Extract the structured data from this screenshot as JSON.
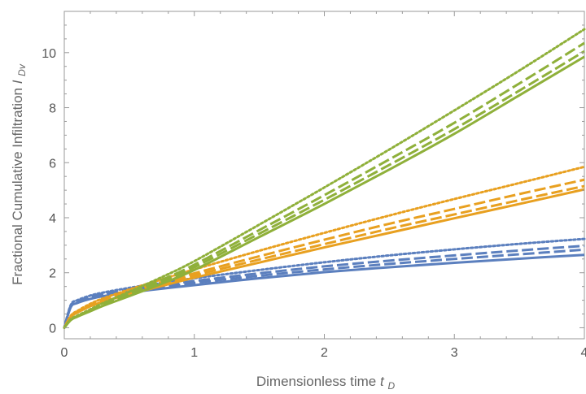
{
  "chart_data": {
    "type": "line",
    "xlabel": "Dimensionless time",
    "xlabel_symbol": "t",
    "xlabel_subscript": "D",
    "ylabel": "Fractional Cumulative Infiltration",
    "ylabel_symbol": "I",
    "ylabel_subscript": "Dv",
    "xlim": [
      0,
      4
    ],
    "ylim": [
      -0.4,
      11.5
    ],
    "x_ticks": [
      0,
      1,
      2,
      3,
      4
    ],
    "y_ticks": [
      0,
      2,
      4,
      6,
      8,
      10
    ],
    "grid": false,
    "legend": "none",
    "x": [
      0,
      0.05,
      0.1,
      0.2,
      0.3,
      0.5,
      0.75,
      1.0,
      1.5,
      2.0,
      2.5,
      3.0,
      3.5,
      4.0
    ],
    "series": [
      {
        "color": "#5B7FBE",
        "style": "solid",
        "values": [
          0,
          0.75,
          0.9,
          1.05,
          1.15,
          1.28,
          1.42,
          1.55,
          1.8,
          2.02,
          2.2,
          2.36,
          2.51,
          2.65
        ]
      },
      {
        "color": "#5B7FBE",
        "style": "dashed",
        "values": [
          0,
          0.77,
          0.93,
          1.09,
          1.19,
          1.33,
          1.48,
          1.63,
          1.89,
          2.12,
          2.32,
          2.5,
          2.67,
          2.84
        ]
      },
      {
        "color": "#5B7FBE",
        "style": "dashed",
        "values": [
          0,
          0.8,
          0.96,
          1.12,
          1.23,
          1.38,
          1.55,
          1.7,
          1.98,
          2.23,
          2.44,
          2.63,
          2.81,
          2.98
        ]
      },
      {
        "color": "#5B7FBE",
        "style": "dotted",
        "values": [
          0,
          0.83,
          1.0,
          1.17,
          1.28,
          1.45,
          1.63,
          1.8,
          2.1,
          2.38,
          2.63,
          2.85,
          3.05,
          3.23
        ]
      },
      {
        "color": "#E8A020",
        "style": "solid",
        "values": [
          0,
          0.4,
          0.55,
          0.78,
          0.95,
          1.22,
          1.52,
          1.82,
          2.37,
          2.92,
          3.45,
          3.98,
          4.5,
          5.03
        ]
      },
      {
        "color": "#E8A020",
        "style": "dashed",
        "values": [
          0,
          0.41,
          0.57,
          0.8,
          0.98,
          1.27,
          1.58,
          1.9,
          2.48,
          3.04,
          3.6,
          4.12,
          4.64,
          5.15
        ]
      },
      {
        "color": "#E8A020",
        "style": "dashed",
        "values": [
          0,
          0.42,
          0.59,
          0.83,
          1.02,
          1.32,
          1.66,
          1.98,
          2.6,
          3.2,
          3.78,
          4.32,
          4.86,
          5.38
        ]
      },
      {
        "color": "#E8A020",
        "style": "dotted",
        "values": [
          0,
          0.44,
          0.61,
          0.87,
          1.07,
          1.39,
          1.76,
          2.12,
          2.8,
          3.45,
          4.08,
          4.68,
          5.26,
          5.85
        ]
      },
      {
        "color": "#8FB03A",
        "style": "solid",
        "values": [
          0,
          0.28,
          0.4,
          0.6,
          0.8,
          1.15,
          1.6,
          2.1,
          3.3,
          4.5,
          5.75,
          7.05,
          8.45,
          9.85
        ]
      },
      {
        "color": "#8FB03A",
        "style": "dashed",
        "values": [
          0,
          0.29,
          0.41,
          0.62,
          0.83,
          1.2,
          1.67,
          2.2,
          3.42,
          4.65,
          5.92,
          7.22,
          8.62,
          10.05
        ]
      },
      {
        "color": "#8FB03A",
        "style": "dashed",
        "values": [
          0,
          0.3,
          0.42,
          0.64,
          0.86,
          1.25,
          1.74,
          2.29,
          3.55,
          4.82,
          6.12,
          7.45,
          8.88,
          10.35
        ]
      },
      {
        "color": "#8FB03A",
        "style": "dotted",
        "values": [
          0,
          0.31,
          0.44,
          0.67,
          0.9,
          1.31,
          1.84,
          2.42,
          3.75,
          5.1,
          6.48,
          7.9,
          9.35,
          10.85
        ]
      }
    ]
  }
}
